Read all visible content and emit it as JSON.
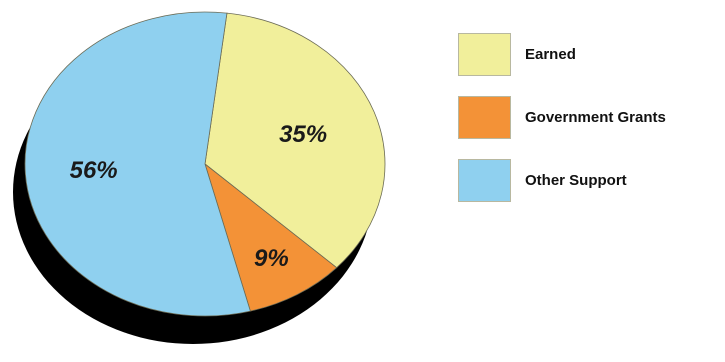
{
  "chart_data": {
    "type": "pie",
    "style": "3d-tilted",
    "categories": [
      "Earned",
      "Government Grants",
      "Other Support"
    ],
    "values": [
      35,
      9,
      56
    ],
    "value_labels": [
      "35%",
      "9%",
      "56%"
    ],
    "colors": [
      "#f1ef9b",
      "#f39237",
      "#8fd0ef"
    ],
    "legend": {
      "placement": "right",
      "items": [
        {
          "label": "Earned",
          "color": "#f1ef9b"
        },
        {
          "label": "Government Grants",
          "color": "#f39237"
        },
        {
          "label": "Other Support",
          "color": "#8fd0ef"
        }
      ]
    }
  }
}
